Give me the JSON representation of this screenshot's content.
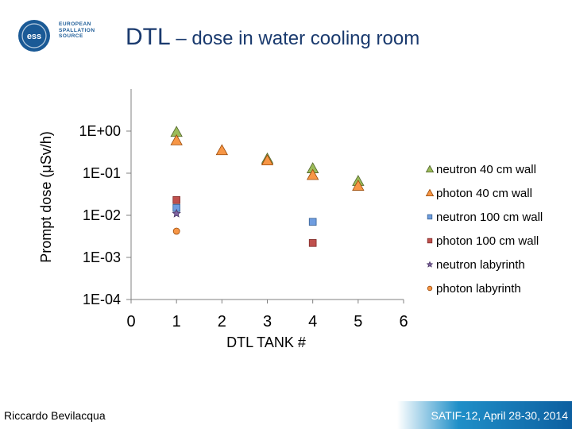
{
  "slide": {
    "title_main": "DTL",
    "title_sep": " – ",
    "title_sub": "dose in water cooling room",
    "logo_lines": [
      "EUROPEAN",
      "SPALLATION",
      "SOURCE"
    ],
    "logo_mark": "ess",
    "footer_left": "Riccardo Bevilacqua",
    "footer_right": "SATIF-12, April 28-30, 2014"
  },
  "colors": {
    "title": "#1a3a6e",
    "logo": "#1a5a96"
  },
  "chart_data": {
    "type": "scatter",
    "title": "",
    "xlabel": "DTL TANK #",
    "ylabel": "Prompt dose (μSv/h)",
    "xlim": [
      0,
      6
    ],
    "ylim_log10": [
      -4,
      1
    ],
    "x_ticks": [
      "0",
      "1",
      "2",
      "3",
      "4",
      "5",
      "6"
    ],
    "y_ticks": [
      {
        "label": "1E+00",
        "log": 0
      },
      {
        "label": "1E-01",
        "log": -1
      },
      {
        "label": "1E-02",
        "log": -2
      },
      {
        "label": "1E-03",
        "log": -3
      },
      {
        "label": "1E-04",
        "log": -4
      }
    ],
    "grid": false,
    "legend_position": "right",
    "series": [
      {
        "name": "neutron 40 cm wall",
        "marker": "triangle",
        "fill": "#9bbb59",
        "stroke": "#4f6228",
        "points": [
          {
            "x": 1,
            "y": 0.95
          },
          {
            "x": 3,
            "y": 0.22
          },
          {
            "x": 4,
            "y": 0.13
          },
          {
            "x": 5,
            "y": 0.065
          }
        ]
      },
      {
        "name": "photon 40 cm wall",
        "marker": "triangle",
        "fill": "#f79646",
        "stroke": "#984807",
        "points": [
          {
            "x": 1,
            "y": 0.6
          },
          {
            "x": 2,
            "y": 0.35
          },
          {
            "x": 3,
            "y": 0.2
          },
          {
            "x": 4,
            "y": 0.09
          },
          {
            "x": 5,
            "y": 0.05
          }
        ]
      },
      {
        "name": "neutron 100 cm wall",
        "marker": "square",
        "fill": "#6f9de0",
        "stroke": "#365f91",
        "points": [
          {
            "x": 1,
            "y": 0.015
          },
          {
            "x": 4,
            "y": 0.007
          }
        ]
      },
      {
        "name": "photon 100 cm wall",
        "marker": "square",
        "fill": "#c0504d",
        "stroke": "#7f2b29",
        "points": [
          {
            "x": 1,
            "y": 0.023
          },
          {
            "x": 4,
            "y": 0.0022
          }
        ]
      },
      {
        "name": "neutron labyrinth",
        "marker": "star",
        "fill": "#8064a2",
        "stroke": "#4a3566",
        "points": [
          {
            "x": 1,
            "y": 0.011
          }
        ]
      },
      {
        "name": "photon labyrinth",
        "marker": "circle",
        "fill": "#f79646",
        "stroke": "#984807",
        "points": [
          {
            "x": 1,
            "y": 0.0042
          }
        ]
      }
    ]
  }
}
